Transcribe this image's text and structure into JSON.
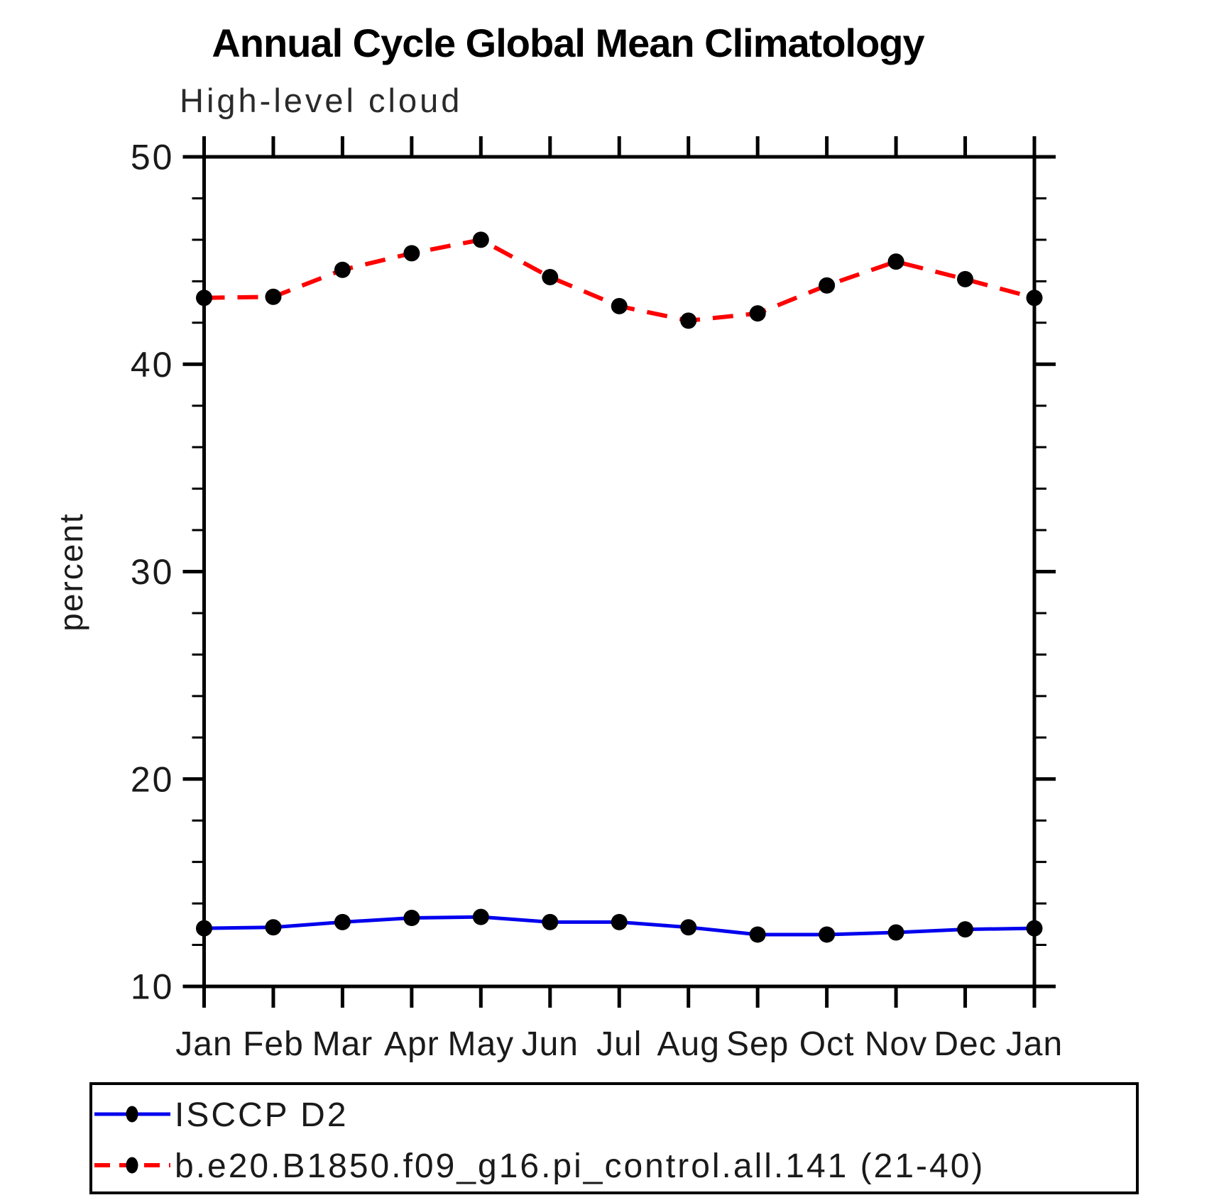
{
  "chart_data": {
    "type": "line",
    "title": "Annual Cycle Global Mean Climatology",
    "subtitle": "High-level cloud",
    "ylabel": "percent",
    "xlabel": "",
    "categories": [
      "Jan",
      "Feb",
      "Mar",
      "Apr",
      "May",
      "Jun",
      "Jul",
      "Aug",
      "Sep",
      "Oct",
      "Nov",
      "Dec",
      "Jan"
    ],
    "ylim": [
      10,
      50
    ],
    "ytick_major": [
      10,
      20,
      30,
      40,
      50
    ],
    "ytick_minor_step": 2,
    "grid": false,
    "legend_position": "bottom-left-box",
    "marker": {
      "shape": "filled-circle",
      "color": "#000000"
    },
    "series": [
      {
        "name": "ISCCP D2",
        "color": "#0000ee",
        "style": "solid",
        "values": [
          12.8,
          12.85,
          13.1,
          13.3,
          13.35,
          13.1,
          13.1,
          12.85,
          12.5,
          12.5,
          12.6,
          12.75,
          12.8
        ]
      },
      {
        "name": "b.e20.B1850.f09_g16.pi_control.all.141 (21-40)",
        "color": "#ff0000",
        "style": "dashed",
        "values": [
          43.2,
          43.25,
          44.55,
          45.35,
          46.0,
          44.2,
          42.8,
          42.1,
          42.45,
          43.8,
          44.95,
          44.1,
          43.2
        ]
      }
    ]
  }
}
